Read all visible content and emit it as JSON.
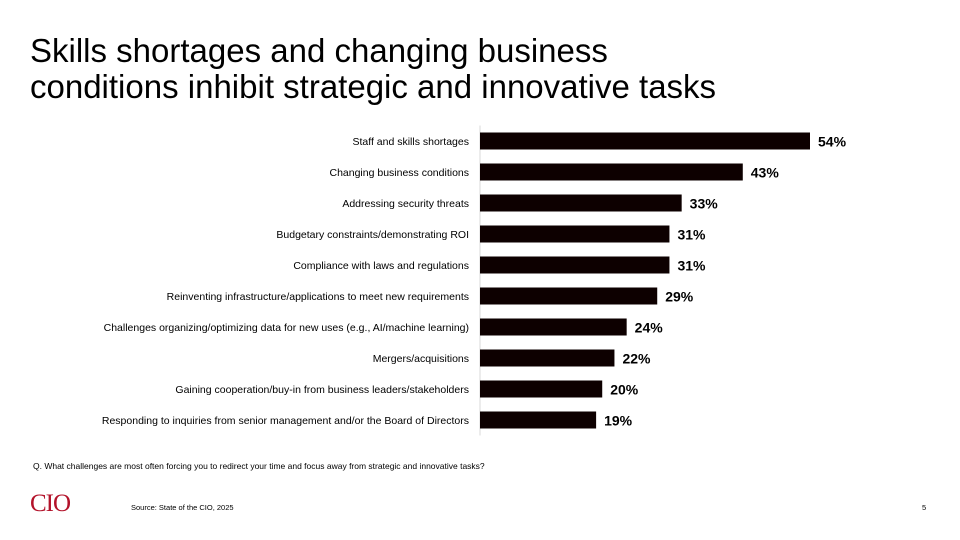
{
  "slide": {
    "title_line1": "Skills shortages and changing business",
    "title_line2": "conditions inhibit strategic and innovative tasks",
    "question": "Q. What challenges are most often forcing you to redirect your time and focus away from strategic and innovative tasks?",
    "source": "Source: State of the CIO, 2025",
    "page_number": "5",
    "logo_text": "CIO"
  },
  "colors": {
    "bar": "#0d0000",
    "axis": "#d9d9d9",
    "logo": "#b3122a"
  },
  "chart_data": {
    "type": "bar",
    "orientation": "horizontal",
    "title": "",
    "xlabel": "",
    "ylabel": "",
    "xlim": [
      0,
      60
    ],
    "grid": false,
    "legend": "none",
    "value_suffix": "%",
    "categories": [
      "Staff and skills shortages",
      "Changing business conditions",
      "Addressing security threats",
      "Budgetary constraints/demonstrating ROI",
      "Compliance with laws and regulations",
      "Reinventing infrastructure/applications to meet new requirements",
      "Challenges organizing/optimizing data for new uses (e.g., AI/machine learning)",
      "Mergers/acquisitions",
      "Gaining cooperation/buy-in from business leaders/stakeholders",
      "Responding to inquiries from senior management and/or the Board of Directors"
    ],
    "values": [
      54,
      43,
      33,
      31,
      31,
      29,
      24,
      22,
      20,
      19
    ]
  }
}
